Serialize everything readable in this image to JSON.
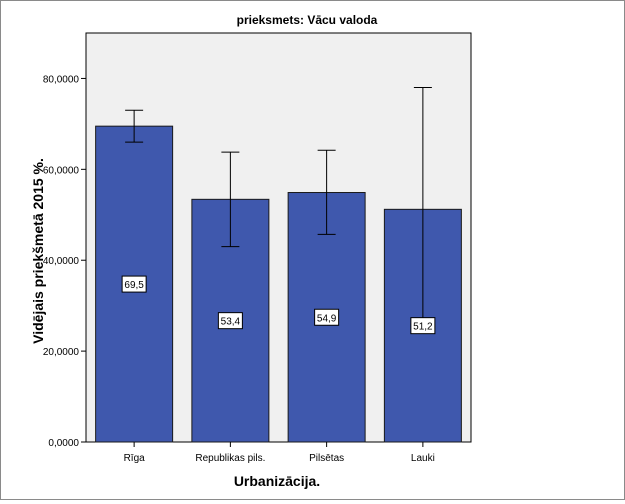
{
  "chart_data": {
    "type": "bar",
    "title": "prieksmets: Vācu valoda",
    "xlabel": "Urbanizācija.",
    "ylabel": "Vidējais priekšmetā 2015 %.",
    "categories": [
      "Rīga",
      "Republikas pils.",
      "Pilsētas",
      "Lauki"
    ],
    "values": [
      69.5,
      53.4,
      54.9,
      51.2
    ],
    "data_labels": [
      "69,5",
      "53,4",
      "54,9",
      "51,2"
    ],
    "error_bars": [
      {
        "low": 66.0,
        "high": 73.0
      },
      {
        "low": 43.0,
        "high": 63.8
      },
      {
        "low": 45.7,
        "high": 64.2
      },
      {
        "low": 24.5,
        "high": 78.0
      }
    ],
    "ylim": [
      0,
      90
    ],
    "yticks": [
      0,
      20,
      40,
      60,
      80
    ],
    "ytick_labels": [
      "0,0000",
      "20,0000",
      "40,0000",
      "60,0000",
      "80,0000"
    ],
    "grid": false,
    "legend": "none",
    "colors": {
      "bar_fill": "#3f58ad",
      "bar_stroke": "#1a1a1a",
      "plot_background": "#f0f0f0",
      "error_bar": "#000000"
    }
  }
}
